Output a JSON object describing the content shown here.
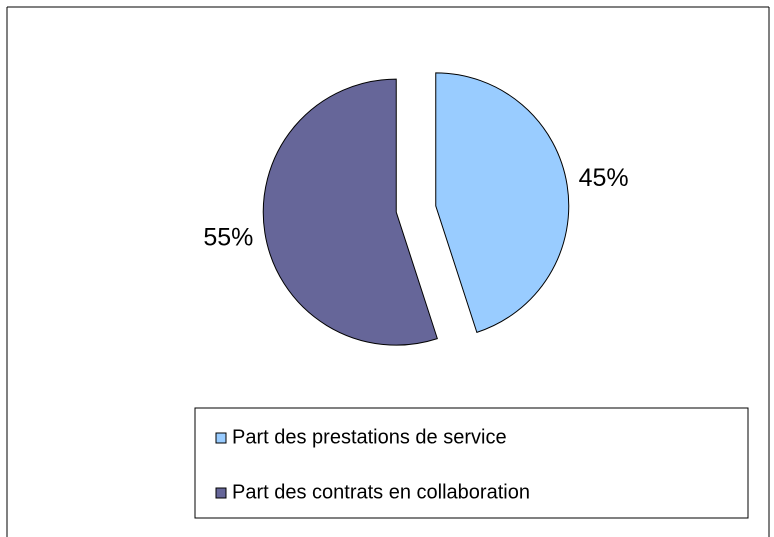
{
  "chart_data": {
    "type": "pie",
    "categories": [
      "Part des prestations de service",
      "Part des contrats en collaboration"
    ],
    "values": [
      45,
      55
    ],
    "value_labels": [
      "45%",
      "55%"
    ],
    "colors": [
      "#99ccff",
      "#666699"
    ],
    "legend": "bottom"
  }
}
